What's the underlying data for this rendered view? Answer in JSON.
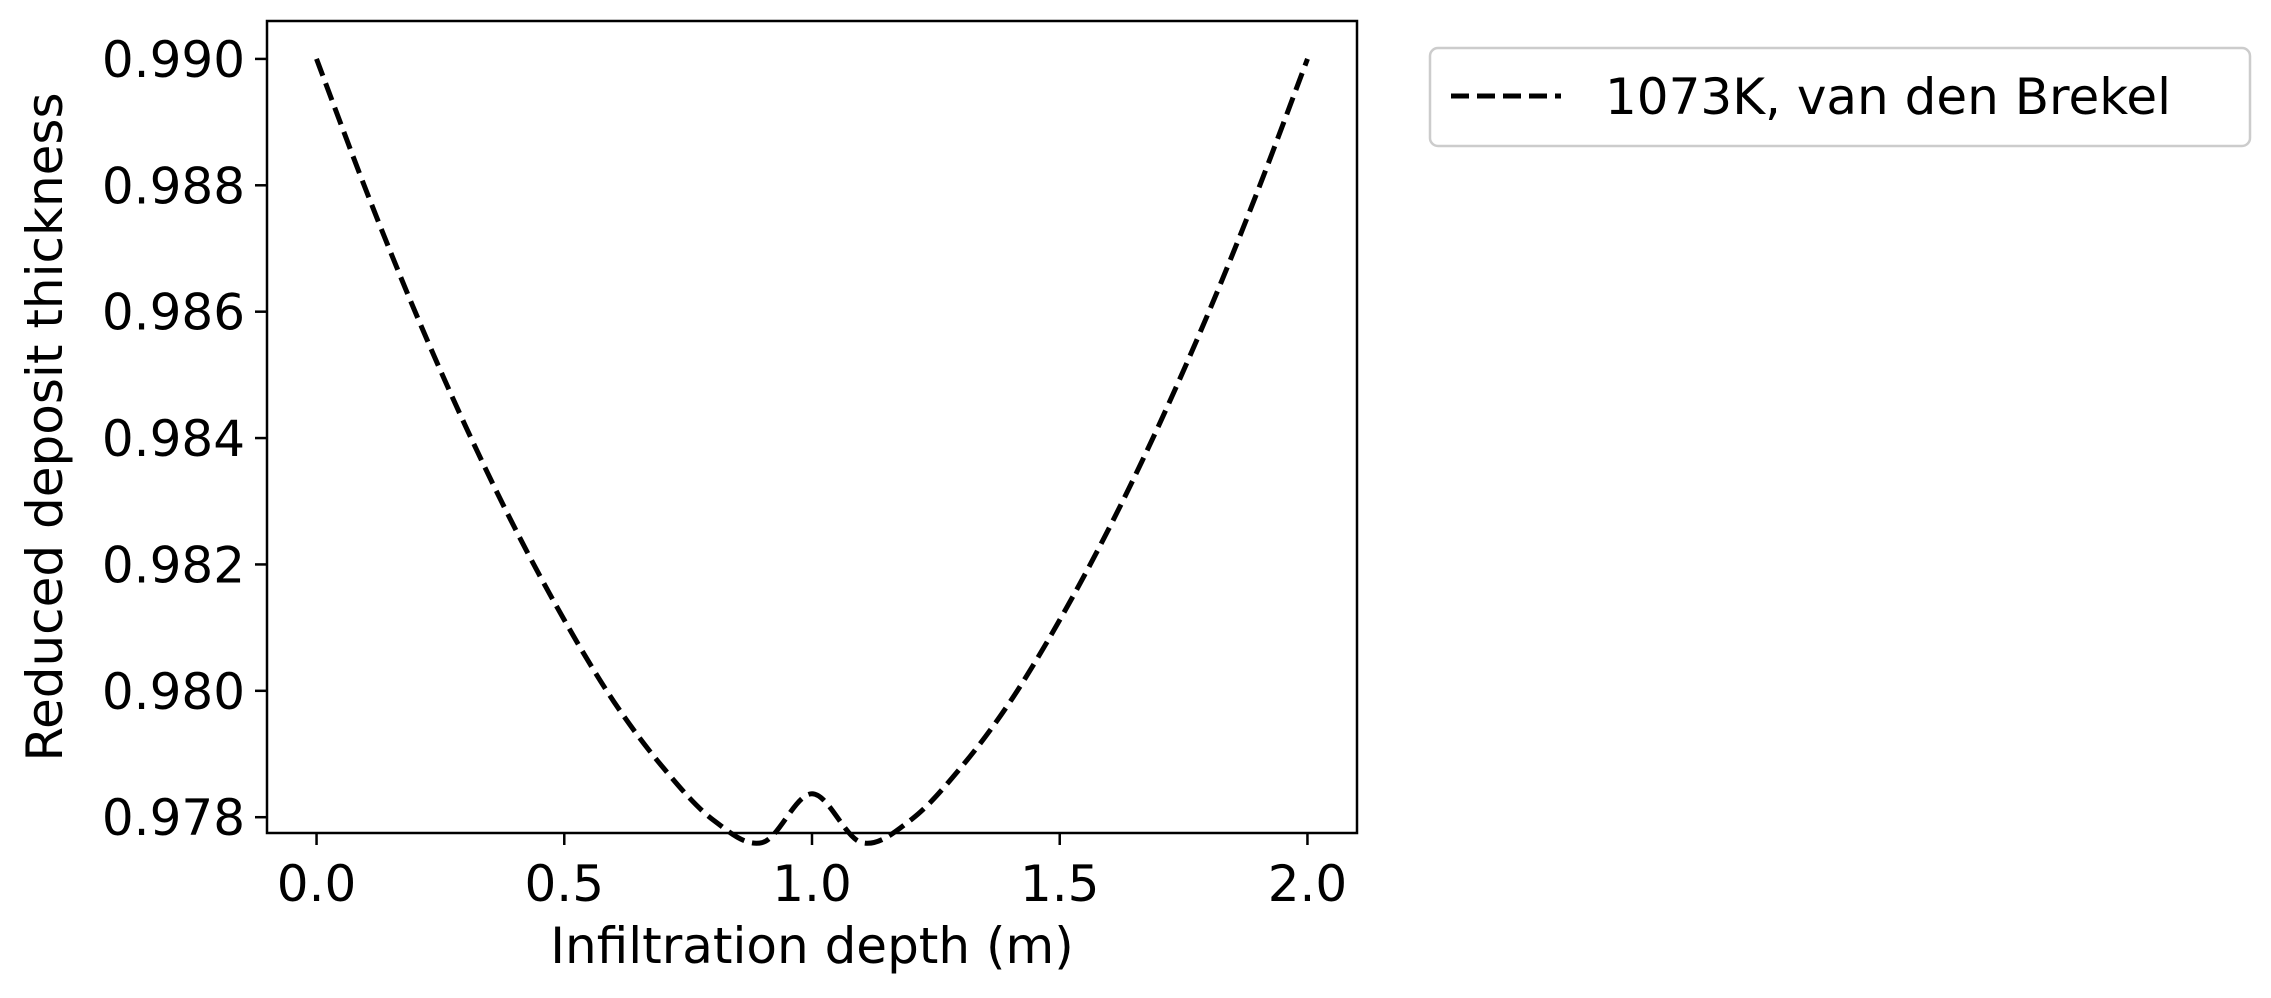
{
  "chart_data": {
    "type": "line",
    "xlabel": "Infiltration depth (m)",
    "ylabel": "Reduced deposit thickness",
    "xlim": [
      -0.1,
      2.1
    ],
    "ylim": [
      0.97775,
      0.9906
    ],
    "x_ticks": [
      0.0,
      0.5,
      1.0,
      1.5,
      2.0
    ],
    "x_tick_labels": [
      "0.0",
      "0.5",
      "1.0",
      "1.5",
      "2.0"
    ],
    "y_ticks": [
      0.978,
      0.98,
      0.982,
      0.984,
      0.986,
      0.988,
      0.99
    ],
    "y_tick_labels": [
      "0.978",
      "0.980",
      "0.982",
      "0.984",
      "0.986",
      "0.988",
      "0.990"
    ],
    "grid": false,
    "legend_placement": "outside-top-right",
    "series": [
      {
        "name": "1073K, van den Brekel",
        "color": "#000000",
        "line_style": "dashed",
        "x": [
          0.0,
          0.1,
          0.2,
          0.3,
          0.4,
          0.5,
          0.6,
          0.7,
          0.8,
          0.9,
          1.0,
          1.1,
          1.2,
          1.3,
          1.4,
          1.5,
          1.6,
          1.7,
          1.8,
          1.9,
          2.0
        ],
        "values": [
          0.99,
          0.98792,
          0.98598,
          0.9842,
          0.98258,
          0.98112,
          0.97983,
          0.97878,
          0.97796,
          0.9776,
          0.97837,
          0.9776,
          0.97796,
          0.97878,
          0.97983,
          0.98112,
          0.98258,
          0.9842,
          0.98598,
          0.98792,
          0.99
        ]
      }
    ]
  }
}
